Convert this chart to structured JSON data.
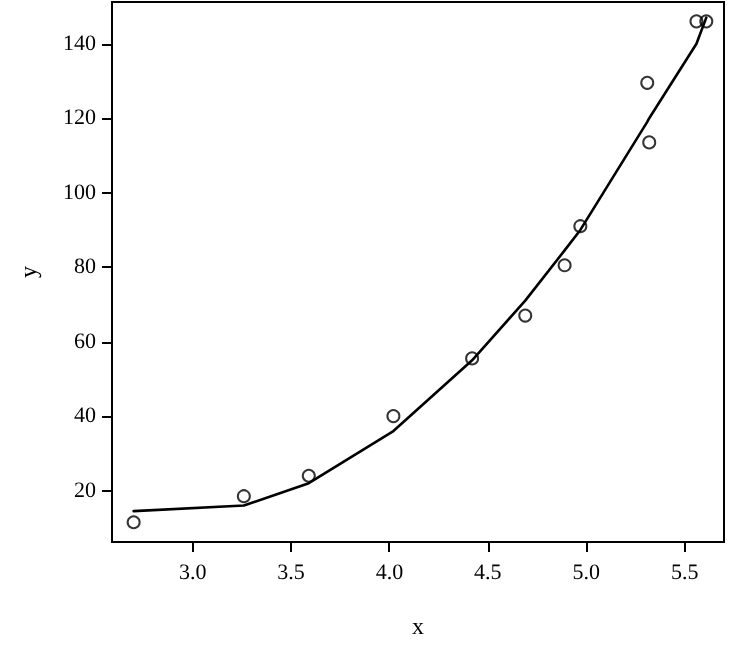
{
  "chart_data": {
    "type": "scatter",
    "xlabel": "x",
    "ylabel": "y",
    "xlim": [
      2.59,
      5.7
    ],
    "ylim": [
      6.2,
      151.2
    ],
    "xticks": [
      {
        "value": 3,
        "label": "3.0"
      },
      3.5,
      {
        "value": 4,
        "label": "4.0"
      },
      4.5,
      {
        "value": 5,
        "label": "5.0"
      },
      5.5
    ],
    "yticks": [
      20,
      40,
      60,
      80,
      100,
      120,
      140
    ],
    "grid": false,
    "series": [
      {
        "color": "#000000",
        "marker": "circle",
        "x": [
          2.7,
          3.26,
          3.59,
          4.02,
          4.42,
          4.69,
          4.89,
          4.97,
          5.31,
          5.32,
          5.56,
          5.61
        ],
        "values": [
          11.5,
          18.5,
          24,
          40,
          55.5,
          67,
          80.5,
          91,
          129.5,
          113.5,
          146,
          146
        ]
      },
      {
        "type": "line",
        "color": "#000000",
        "marker": "none",
        "line_style": "solid",
        "x": [
          2.7,
          3.26,
          3.59,
          4.02,
          4.42,
          4.69,
          4.89,
          4.97,
          5.31,
          5.32,
          5.56,
          5.61
        ],
        "values": [
          14.5,
          16,
          22,
          36,
          55,
          71,
          84.5,
          90,
          119,
          120,
          140,
          147
        ]
      }
    ]
  }
}
